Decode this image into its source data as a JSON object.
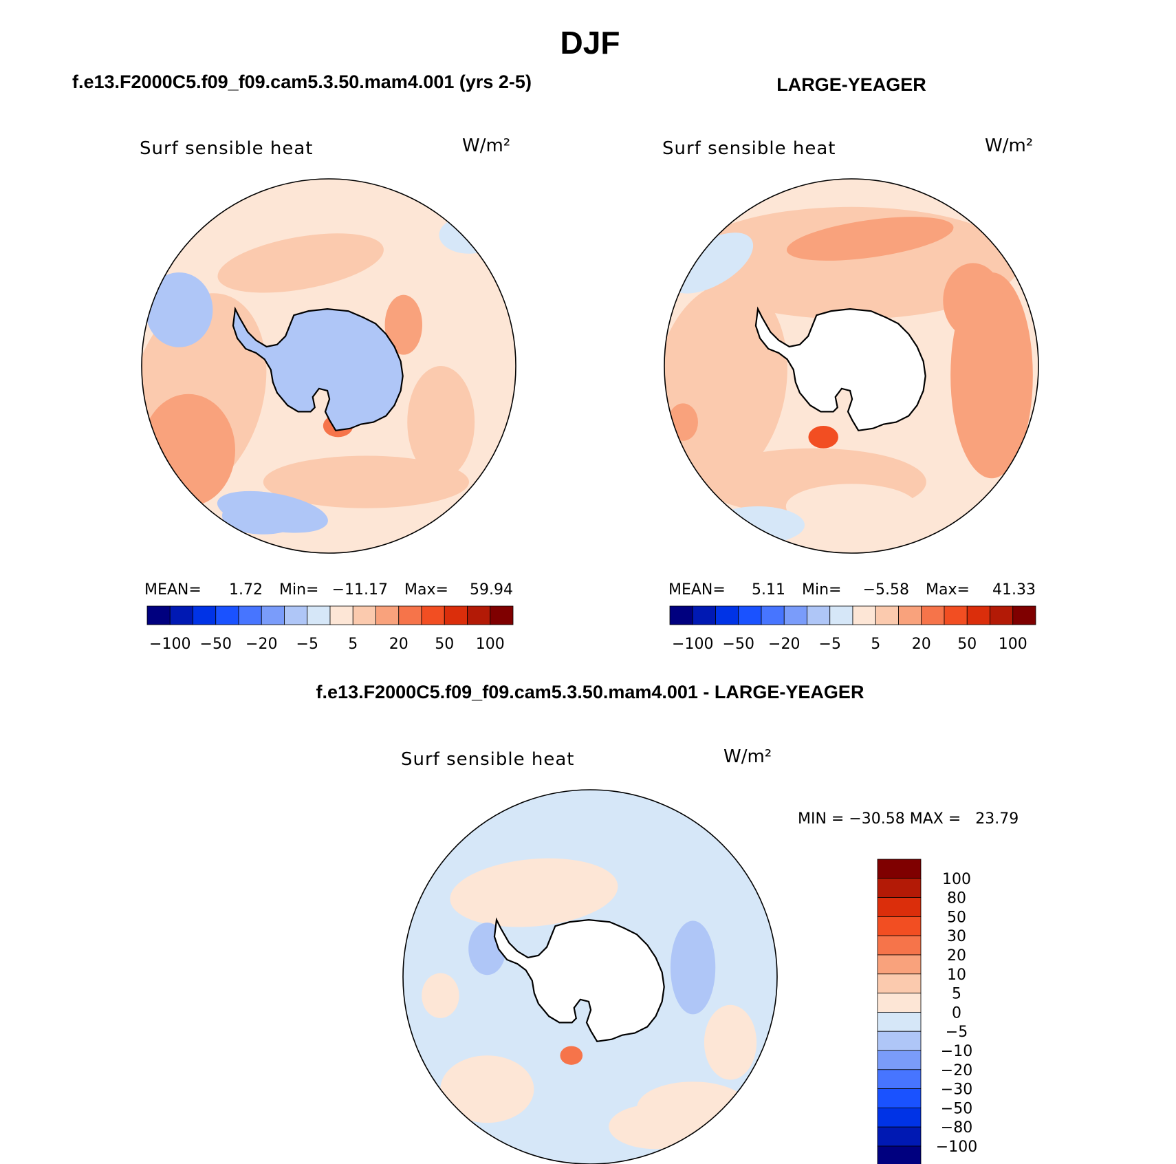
{
  "page_title": "DJF",
  "colors": {
    "palette": [
      "#00007f",
      "#0019b3",
      "#0033e6",
      "#1a52ff",
      "#4775ff",
      "#7a9cfa",
      "#afc6f7",
      "#d6e7f8",
      "#fde6d6",
      "#fbcaae",
      "#f9a27c",
      "#f6744a",
      "#f24e22",
      "#db2e0b",
      "#b31a06",
      "#7f0000"
    ],
    "land_ice": "#ffffff",
    "coastline": "#000000"
  },
  "chart_data": [
    {
      "type": "heatmap",
      "projection": "south-polar-stereographic",
      "panel_title": "f.e13.F2000C5.f09_f09.cam5.3.50.mam4.001 (yrs 2-5)",
      "variable": "Surf sensible heat",
      "units": "W/m²",
      "stats": {
        "mean_label": "MEAN=",
        "mean": "1.72",
        "min_label": "Min=",
        "min": "−11.17",
        "max_label": "Max=",
        "max": "59.94"
      },
      "colorbar": {
        "orientation": "horizontal",
        "levels": [
          "−100",
          "−50",
          "−20",
          "−5",
          "5",
          "20",
          "50",
          "100"
        ],
        "bins": 16
      },
      "antarctica_filled": true
    },
    {
      "type": "heatmap",
      "projection": "south-polar-stereographic",
      "panel_title": "LARGE-YEAGER",
      "variable": "Surf sensible heat",
      "units": "W/m²",
      "stats": {
        "mean_label": "MEAN=",
        "mean": "5.11",
        "min_label": "Min=",
        "min": "−5.58",
        "max_label": "Max=",
        "max": "41.33"
      },
      "colorbar": {
        "orientation": "horizontal",
        "levels": [
          "−100",
          "−50",
          "−20",
          "−5",
          "5",
          "20",
          "50",
          "100"
        ],
        "bins": 16
      },
      "antarctica_filled": false
    },
    {
      "type": "heatmap",
      "projection": "south-polar-stereographic",
      "panel_title": "f.e13.F2000C5.f09_f09.cam5.3.50.mam4.001 - LARGE-YEAGER",
      "variable": "Surf sensible heat",
      "units": "W/m²",
      "stats_text": "MIN = −30.58 MAX =   23.79",
      "colorbar": {
        "orientation": "vertical",
        "levels": [
          "100",
          "80",
          "50",
          "30",
          "20",
          "10",
          "5",
          "0",
          "−5",
          "−10",
          "−20",
          "−30",
          "−50",
          "−80",
          "−100"
        ],
        "bins": 16
      },
      "antarctica_filled": false
    }
  ]
}
